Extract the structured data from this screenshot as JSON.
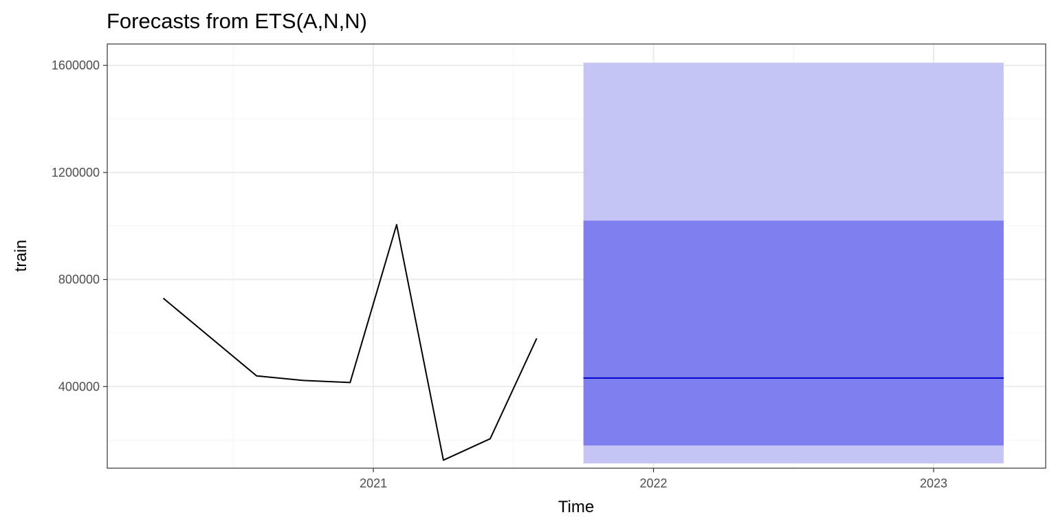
{
  "chart_data": {
    "type": "line",
    "title": "Forecasts from ETS(A,N,N)",
    "xlabel": "Time",
    "ylabel": "train",
    "xlim": [
      2020.05,
      2023.4
    ],
    "ylim": [
      95000,
      1680000
    ],
    "x_ticks": [
      2021,
      2022,
      2023
    ],
    "x_tick_labels": [
      "2021",
      "2022",
      "2023"
    ],
    "y_ticks": [
      400000,
      800000,
      1200000,
      1600000
    ],
    "y_tick_labels": [
      "400000",
      "800000",
      "1200000",
      "1600000"
    ],
    "grid": true,
    "series": [
      {
        "x": [
          2020.25,
          2020.583,
          2020.75,
          2020.917,
          2021.083,
          2021.25,
          2021.417,
          2021.583
        ],
        "values": [
          730000,
          440000,
          423000,
          415000,
          1005000,
          125000,
          205000,
          580000
        ]
      }
    ],
    "forecast": {
      "x_start": 2021.75,
      "x_end": 2023.25,
      "point": 432000,
      "lower80": 180000,
      "upper80": 1020000,
      "lower95": 113000,
      "upper95": 1610000
    },
    "colors": {
      "line": "#000000",
      "forecast_line": "#0000cc",
      "band80": "#7f7fef",
      "band95": "#c4c4f5",
      "grid_major": "#ebebeb",
      "grid_minor": "#f4f4f4",
      "panel_border": "#333333"
    }
  }
}
